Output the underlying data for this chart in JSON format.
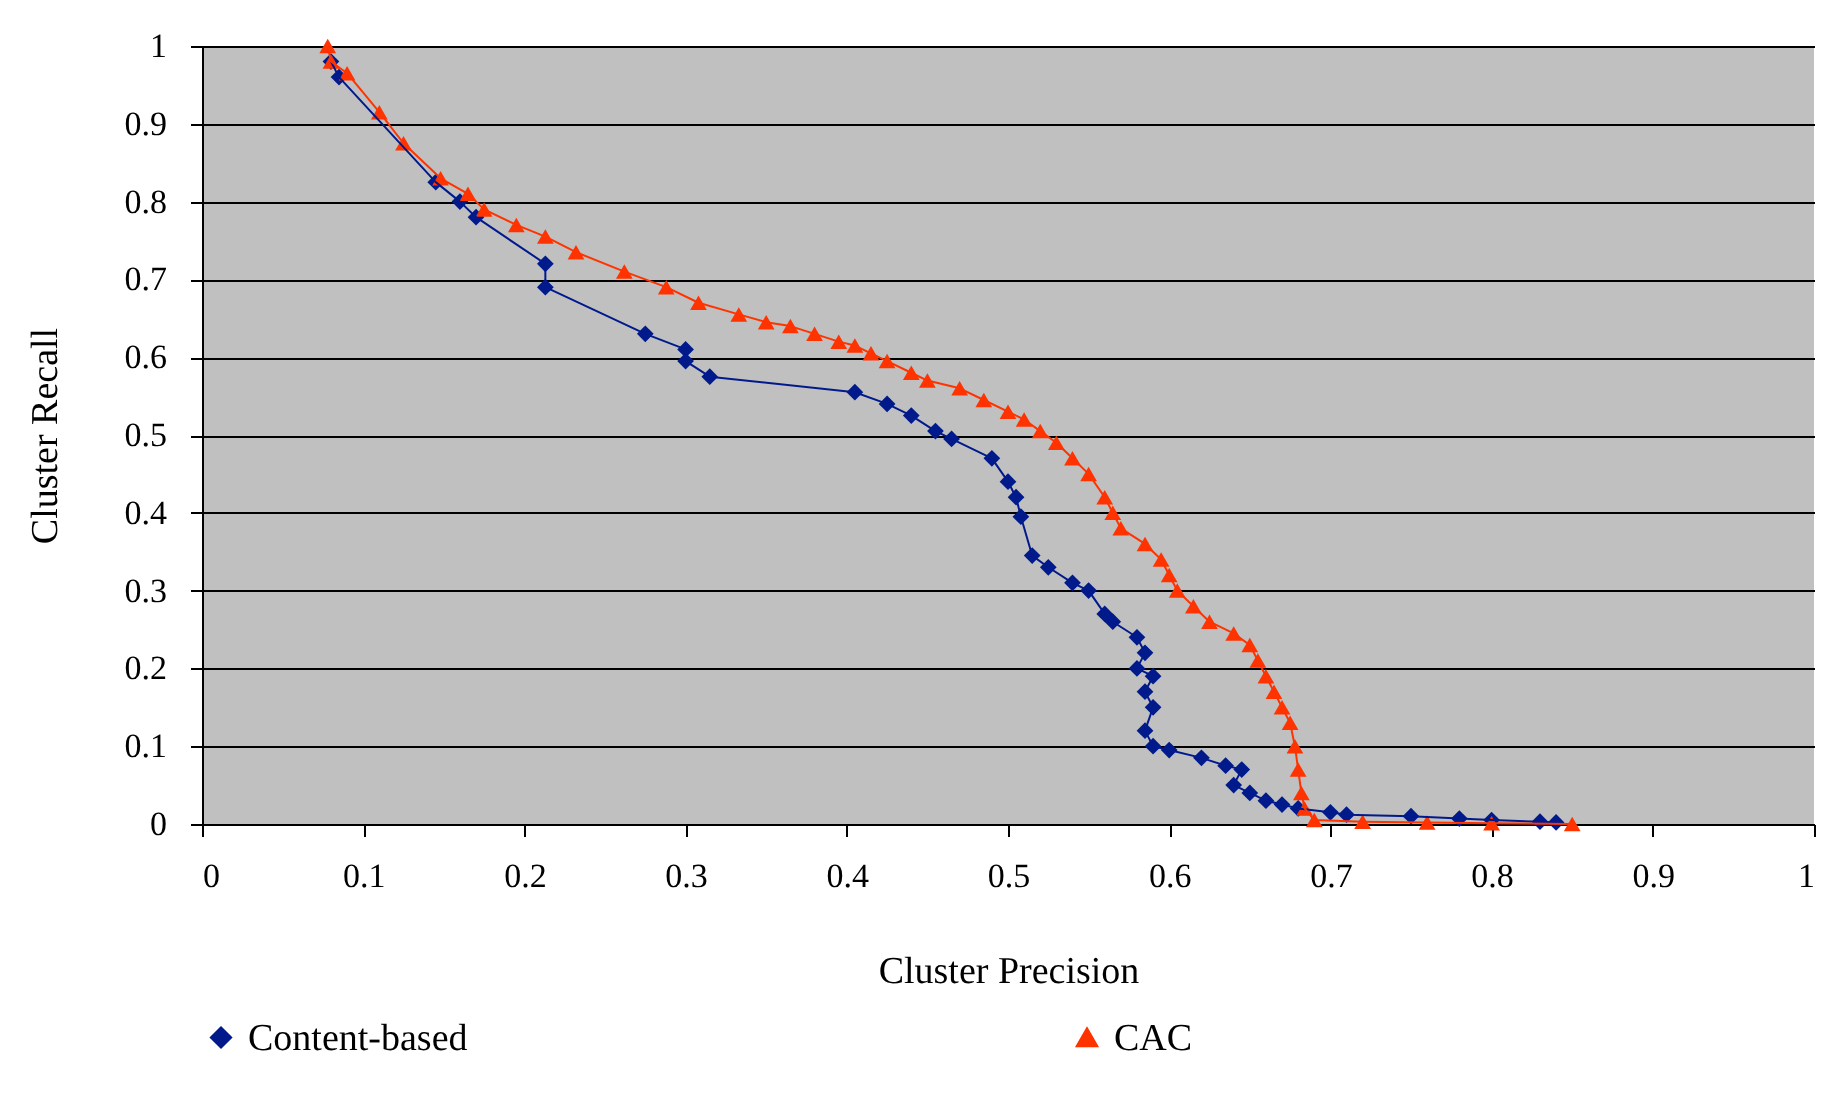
{
  "chart_data": {
    "type": "line",
    "xlabel": "Cluster Precision",
    "ylabel": "Cluster Recall",
    "xlim": [
      0,
      1
    ],
    "ylim": [
      0,
      1
    ],
    "xticks": [
      0,
      0.1,
      0.2,
      0.3,
      0.4,
      0.5,
      0.6,
      0.7,
      0.8,
      0.9,
      1
    ],
    "yticks": [
      0,
      0.1,
      0.2,
      0.3,
      0.4,
      0.5,
      0.6,
      0.7,
      0.8,
      0.9,
      1
    ],
    "grid": "y",
    "legend": "bottom",
    "series": [
      {
        "name": "Content-based",
        "color": "#001a8c",
        "marker": "diamond",
        "x": [
          0.08,
          0.085,
          0.145,
          0.16,
          0.17,
          0.213,
          0.213,
          0.275,
          0.3,
          0.3,
          0.315,
          0.405,
          0.425,
          0.44,
          0.455,
          0.465,
          0.49,
          0.5,
          0.505,
          0.508,
          0.515,
          0.525,
          0.54,
          0.55,
          0.56,
          0.565,
          0.58,
          0.585,
          0.58,
          0.59,
          0.585,
          0.59,
          0.585,
          0.59,
          0.6,
          0.62,
          0.635,
          0.645,
          0.64,
          0.65,
          0.66,
          0.67,
          0.68,
          0.7,
          0.71,
          0.75,
          0.78,
          0.8,
          0.83,
          0.84
        ],
        "values": [
          0.98,
          0.96,
          0.825,
          0.8,
          0.78,
          0.72,
          0.69,
          0.63,
          0.61,
          0.595,
          0.575,
          0.555,
          0.54,
          0.525,
          0.505,
          0.495,
          0.47,
          0.44,
          0.42,
          0.395,
          0.345,
          0.33,
          0.31,
          0.3,
          0.27,
          0.26,
          0.24,
          0.22,
          0.2,
          0.19,
          0.17,
          0.15,
          0.12,
          0.1,
          0.095,
          0.085,
          0.075,
          0.07,
          0.05,
          0.04,
          0.03,
          0.025,
          0.02,
          0.015,
          0.012,
          0.01,
          0.007,
          0.005,
          0.003,
          0.002
        ]
      },
      {
        "name": "CAC",
        "color": "#ff3300",
        "marker": "triangle",
        "x": [
          0.078,
          0.08,
          0.09,
          0.11,
          0.125,
          0.148,
          0.165,
          0.175,
          0.195,
          0.213,
          0.232,
          0.262,
          0.288,
          0.308,
          0.333,
          0.35,
          0.365,
          0.38,
          0.395,
          0.405,
          0.415,
          0.425,
          0.44,
          0.45,
          0.47,
          0.485,
          0.5,
          0.51,
          0.52,
          0.53,
          0.54,
          0.55,
          0.56,
          0.565,
          0.57,
          0.585,
          0.595,
          0.6,
          0.605,
          0.615,
          0.625,
          0.64,
          0.65,
          0.655,
          0.66,
          0.665,
          0.67,
          0.675,
          0.678,
          0.68,
          0.682,
          0.684,
          0.69,
          0.72,
          0.76,
          0.8,
          0.85
        ],
        "values": [
          1.0,
          0.98,
          0.965,
          0.915,
          0.875,
          0.83,
          0.81,
          0.79,
          0.77,
          0.755,
          0.735,
          0.71,
          0.69,
          0.67,
          0.655,
          0.645,
          0.64,
          0.63,
          0.62,
          0.615,
          0.605,
          0.595,
          0.58,
          0.57,
          0.56,
          0.545,
          0.53,
          0.52,
          0.505,
          0.49,
          0.47,
          0.45,
          0.42,
          0.4,
          0.38,
          0.36,
          0.34,
          0.32,
          0.3,
          0.28,
          0.26,
          0.245,
          0.23,
          0.21,
          0.19,
          0.17,
          0.15,
          0.13,
          0.1,
          0.07,
          0.04,
          0.02,
          0.005,
          0.003,
          0.002,
          0.001,
          0.0
        ]
      }
    ]
  }
}
